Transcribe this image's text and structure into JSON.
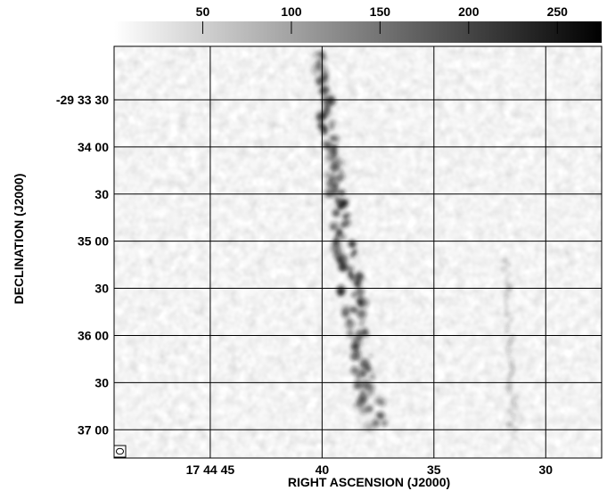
{
  "colorbar": {
    "ticks": [
      "50",
      "100",
      "150",
      "200",
      "250"
    ],
    "tick_values": [
      50,
      100,
      150,
      200,
      250
    ],
    "range": [
      0,
      275
    ],
    "gradient": [
      "#ffffff",
      "#000000"
    ]
  },
  "axes": {
    "x_title": "RIGHT ASCENSION (J2000)",
    "y_title": "DECLINATION (J2000)",
    "x_ticks": [
      {
        "label": "17 44 45",
        "value": 45
      },
      {
        "label": "40",
        "value": 40
      },
      {
        "label": "35",
        "value": 35
      },
      {
        "label": "30",
        "value": 30
      }
    ],
    "y_ticks": [
      {
        "label": "-29 33 30",
        "value": 30
      },
      {
        "label": "34 00",
        "value": 60
      },
      {
        "label": "30",
        "value": 90
      },
      {
        "label": "35 00",
        "value": 120
      },
      {
        "label": "30",
        "value": 150
      },
      {
        "label": "36 00",
        "value": 180
      },
      {
        "label": "30",
        "value": 210
      },
      {
        "label": "37 00",
        "value": 240
      }
    ],
    "x_range_sec": [
      49.3,
      27.5
    ],
    "y_range_arcsec": [
      -4,
      258
    ]
  },
  "grid": true,
  "beam_symbol": "beam-ellipse",
  "image": {
    "noise_colors": [
      "#ffffff",
      "#9a9a9a"
    ],
    "filament_color": "#1a1a1a"
  }
}
